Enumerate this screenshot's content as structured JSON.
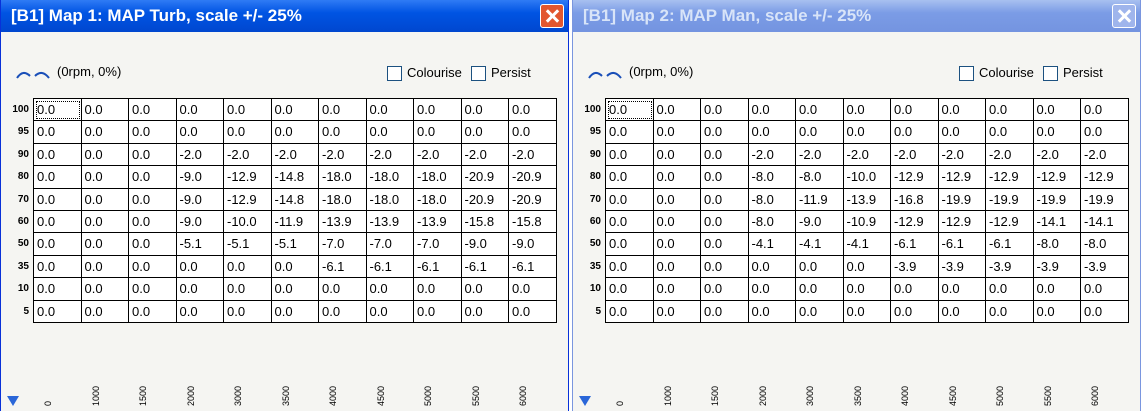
{
  "windows": [
    {
      "title": "[B1] Map 1: MAP Turb, scale +/- 25%",
      "status": "(0rpm, 0%)",
      "colourise": "Colourise",
      "persist": "Persist",
      "row_labels": [
        100,
        95,
        90,
        80,
        70,
        60,
        50,
        35,
        10,
        5
      ],
      "column_labels": [
        0,
        1000,
        1500,
        2000,
        3000,
        3500,
        4000,
        4500,
        5000,
        5500,
        6000
      ],
      "rows": [
        [
          "0.0",
          "0.0",
          "0.0",
          "0.0",
          "0.0",
          "0.0",
          "0.0",
          "0.0",
          "0.0",
          "0.0",
          "0.0"
        ],
        [
          "0.0",
          "0.0",
          "0.0",
          "0.0",
          "0.0",
          "0.0",
          "0.0",
          "0.0",
          "0.0",
          "0.0",
          "0.0"
        ],
        [
          "0.0",
          "0.0",
          "0.0",
          "-2.0",
          "-2.0",
          "-2.0",
          "-2.0",
          "-2.0",
          "-2.0",
          "-2.0",
          "-2.0"
        ],
        [
          "0.0",
          "0.0",
          "0.0",
          "-9.0",
          "-12.9",
          "-14.8",
          "-18.0",
          "-18.0",
          "-18.0",
          "-20.9",
          "-20.9"
        ],
        [
          "0.0",
          "0.0",
          "0.0",
          "-9.0",
          "-12.9",
          "-14.8",
          "-18.0",
          "-18.0",
          "-18.0",
          "-20.9",
          "-20.9"
        ],
        [
          "0.0",
          "0.0",
          "0.0",
          "-9.0",
          "-10.0",
          "-11.9",
          "-13.9",
          "-13.9",
          "-13.9",
          "-15.8",
          "-15.8"
        ],
        [
          "0.0",
          "0.0",
          "0.0",
          "-5.1",
          "-5.1",
          "-5.1",
          "-7.0",
          "-7.0",
          "-7.0",
          "-9.0",
          "-9.0"
        ],
        [
          "0.0",
          "0.0",
          "0.0",
          "0.0",
          "0.0",
          "0.0",
          "-6.1",
          "-6.1",
          "-6.1",
          "-6.1",
          "-6.1"
        ],
        [
          "0.0",
          "0.0",
          "0.0",
          "0.0",
          "0.0",
          "0.0",
          "0.0",
          "0.0",
          "0.0",
          "0.0",
          "0.0"
        ],
        [
          "0.0",
          "0.0",
          "0.0",
          "0.0",
          "0.0",
          "0.0",
          "0.0",
          "0.0",
          "0.0",
          "0.0",
          "0.0"
        ]
      ]
    },
    {
      "title": "[B1] Map 2: MAP Man, scale +/- 25%",
      "status": "(0rpm, 0%)",
      "colourise": "Colourise",
      "persist": "Persist",
      "row_labels": [
        100,
        95,
        90,
        80,
        70,
        60,
        50,
        35,
        10,
        5
      ],
      "column_labels": [
        0,
        1000,
        1500,
        2000,
        3000,
        3500,
        4000,
        4500,
        5000,
        5500,
        6000
      ],
      "rows": [
        [
          "0.0",
          "0.0",
          "0.0",
          "0.0",
          "0.0",
          "0.0",
          "0.0",
          "0.0",
          "0.0",
          "0.0",
          "0.0"
        ],
        [
          "0.0",
          "0.0",
          "0.0",
          "0.0",
          "0.0",
          "0.0",
          "0.0",
          "0.0",
          "0.0",
          "0.0",
          "0.0"
        ],
        [
          "0.0",
          "0.0",
          "0.0",
          "-2.0",
          "-2.0",
          "-2.0",
          "-2.0",
          "-2.0",
          "-2.0",
          "-2.0",
          "-2.0"
        ],
        [
          "0.0",
          "0.0",
          "0.0",
          "-8.0",
          "-8.0",
          "-10.0",
          "-12.9",
          "-12.9",
          "-12.9",
          "-12.9",
          "-12.9"
        ],
        [
          "0.0",
          "0.0",
          "0.0",
          "-8.0",
          "-11.9",
          "-13.9",
          "-16.8",
          "-19.9",
          "-19.9",
          "-19.9",
          "-19.9"
        ],
        [
          "0.0",
          "0.0",
          "0.0",
          "-8.0",
          "-9.0",
          "-10.9",
          "-12.9",
          "-12.9",
          "-12.9",
          "-14.1",
          "-14.1"
        ],
        [
          "0.0",
          "0.0",
          "0.0",
          "-4.1",
          "-4.1",
          "-4.1",
          "-6.1",
          "-6.1",
          "-6.1",
          "-8.0",
          "-8.0"
        ],
        [
          "0.0",
          "0.0",
          "0.0",
          "0.0",
          "0.0",
          "0.0",
          "-3.9",
          "-3.9",
          "-3.9",
          "-3.9",
          "-3.9"
        ],
        [
          "0.0",
          "0.0",
          "0.0",
          "0.0",
          "0.0",
          "0.0",
          "0.0",
          "0.0",
          "0.0",
          "0.0",
          "0.0"
        ],
        [
          "0.0",
          "0.0",
          "0.0",
          "0.0",
          "0.0",
          "0.0",
          "0.0",
          "0.0",
          "0.0",
          "0.0",
          "0.0"
        ]
      ]
    }
  ]
}
